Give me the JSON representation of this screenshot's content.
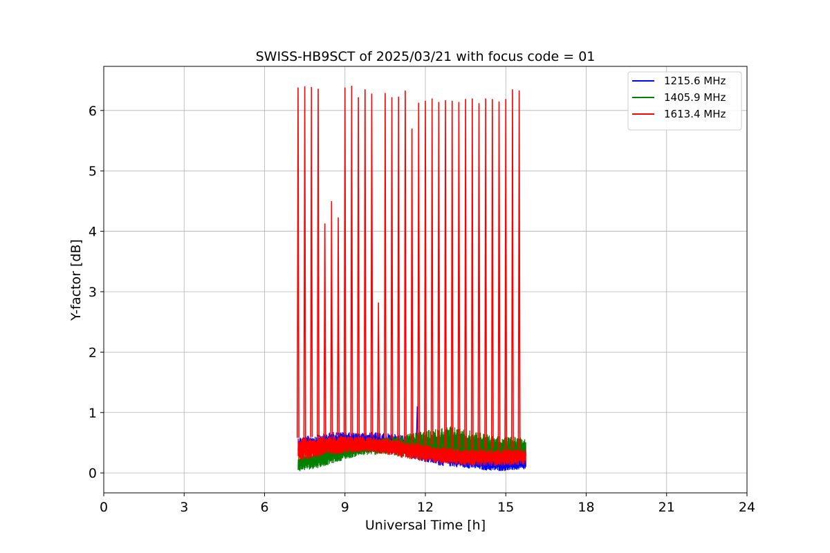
{
  "chart_data": {
    "type": "line",
    "title": "SWISS-HB9SCT of 2025/03/21 with focus code = 01",
    "xlabel": "Universal Time [h]",
    "ylabel": "Y-factor [dB]",
    "xlim": [
      0,
      24
    ],
    "ylim": [
      -0.33,
      6.73
    ],
    "xticks": [
      0,
      3,
      6,
      9,
      12,
      15,
      18,
      21,
      24
    ],
    "xtick_labels": [
      "0",
      "3",
      "6",
      "9",
      "12",
      "15",
      "18",
      "21",
      "24"
    ],
    "yticks": [
      0,
      1,
      2,
      3,
      4,
      5,
      6
    ],
    "ytick_labels": [
      "0",
      "1",
      "2",
      "3",
      "4",
      "5",
      "6"
    ],
    "grid": true,
    "legend_position": "top-right",
    "x_range_of_data": [
      7.2,
      15.75
    ],
    "series": [
      {
        "name": "1215.6 MHz",
        "color": "#0000ff",
        "envelope": {
          "x": [
            7.25,
            8.0,
            8.5,
            9.0,
            9.5,
            10.0,
            10.5,
            11.0,
            11.5,
            12.0,
            12.5,
            13.0,
            13.5,
            14.0,
            14.5,
            15.0,
            15.5,
            15.75
          ],
          "low": [
            0.3,
            0.33,
            0.36,
            0.4,
            0.4,
            0.38,
            0.34,
            0.3,
            0.24,
            0.18,
            0.12,
            0.1,
            0.08,
            0.05,
            0.03,
            0.03,
            0.05,
            0.05
          ],
          "high": [
            0.6,
            0.63,
            0.68,
            0.68,
            0.66,
            0.68,
            0.66,
            0.64,
            0.6,
            0.55,
            0.46,
            0.42,
            0.38,
            0.33,
            0.28,
            0.26,
            0.26,
            0.25
          ]
        },
        "spikes": [
          {
            "x": 11.7,
            "y": 1.1
          }
        ]
      },
      {
        "name": "1405.9 MHz",
        "color": "#008000",
        "envelope": {
          "x": [
            7.25,
            8.0,
            8.5,
            9.0,
            9.5,
            10.0,
            10.5,
            11.0,
            11.5,
            12.0,
            12.5,
            13.0,
            13.5,
            14.0,
            14.5,
            15.0,
            15.5,
            15.75
          ],
          "low": [
            0.02,
            0.08,
            0.15,
            0.22,
            0.28,
            0.3,
            0.3,
            0.28,
            0.24,
            0.22,
            0.22,
            0.24,
            0.22,
            0.2,
            0.18,
            0.2,
            0.22,
            0.22
          ],
          "high": [
            0.3,
            0.38,
            0.45,
            0.5,
            0.52,
            0.55,
            0.58,
            0.62,
            0.66,
            0.7,
            0.75,
            0.78,
            0.72,
            0.68,
            0.62,
            0.6,
            0.6,
            0.58
          ]
        },
        "spikes": []
      },
      {
        "name": "1613.4 MHz",
        "color": "#ff0000",
        "envelope": {
          "x": [
            7.25,
            8.0,
            8.5,
            9.0,
            9.5,
            10.0,
            10.5,
            11.0,
            11.5,
            12.0,
            12.5,
            13.0,
            13.5,
            14.0,
            14.5,
            15.0,
            15.5,
            15.75
          ],
          "low": [
            0.2,
            0.25,
            0.3,
            0.32,
            0.34,
            0.34,
            0.3,
            0.26,
            0.22,
            0.18,
            0.16,
            0.14,
            0.12,
            0.12,
            0.12,
            0.12,
            0.13,
            0.13
          ],
          "high": [
            0.58,
            0.6,
            0.62,
            0.62,
            0.62,
            0.6,
            0.58,
            0.55,
            0.52,
            0.48,
            0.45,
            0.42,
            0.4,
            0.4,
            0.4,
            0.4,
            0.4,
            0.4
          ]
        },
        "spikes": [
          {
            "x": 7.25,
            "y": 6.38
          },
          {
            "x": 7.5,
            "y": 6.4
          },
          {
            "x": 7.75,
            "y": 6.39
          },
          {
            "x": 8.0,
            "y": 6.36
          },
          {
            "x": 8.25,
            "y": 4.13
          },
          {
            "x": 8.5,
            "y": 4.5
          },
          {
            "x": 8.75,
            "y": 4.23
          },
          {
            "x": 9.0,
            "y": 6.38
          },
          {
            "x": 9.25,
            "y": 6.41
          },
          {
            "x": 9.5,
            "y": 6.22
          },
          {
            "x": 9.75,
            "y": 6.35
          },
          {
            "x": 10.0,
            "y": 6.28
          },
          {
            "x": 10.25,
            "y": 2.82
          },
          {
            "x": 10.5,
            "y": 6.29
          },
          {
            "x": 10.75,
            "y": 6.22
          },
          {
            "x": 11.0,
            "y": 6.23
          },
          {
            "x": 11.25,
            "y": 6.33
          },
          {
            "x": 11.5,
            "y": 5.7
          },
          {
            "x": 11.75,
            "y": 6.13
          },
          {
            "x": 12.0,
            "y": 6.16
          },
          {
            "x": 12.25,
            "y": 6.2
          },
          {
            "x": 12.5,
            "y": 6.14
          },
          {
            "x": 12.75,
            "y": 6.17
          },
          {
            "x": 13.0,
            "y": 6.16
          },
          {
            "x": 13.25,
            "y": 6.14
          },
          {
            "x": 13.5,
            "y": 6.19
          },
          {
            "x": 13.75,
            "y": 6.2
          },
          {
            "x": 14.0,
            "y": 6.12
          },
          {
            "x": 14.25,
            "y": 6.2
          },
          {
            "x": 14.5,
            "y": 6.19
          },
          {
            "x": 14.75,
            "y": 6.15
          },
          {
            "x": 15.0,
            "y": 6.19
          },
          {
            "x": 15.25,
            "y": 6.35
          },
          {
            "x": 15.5,
            "y": 6.33
          }
        ]
      }
    ]
  }
}
